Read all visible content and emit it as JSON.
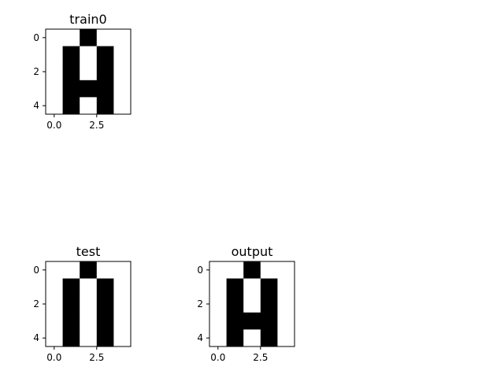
{
  "chart_data": [
    {
      "type": "heatmap",
      "title": "train0",
      "grid": [
        [
          0,
          0,
          1,
          0,
          0
        ],
        [
          0,
          1,
          0,
          1,
          0
        ],
        [
          0,
          1,
          0,
          1,
          0
        ],
        [
          0,
          1,
          1,
          1,
          0
        ],
        [
          0,
          1,
          0,
          1,
          0
        ]
      ],
      "xticks": [
        "0.0",
        "2.5"
      ],
      "xtick_values": [
        0.0,
        2.5
      ],
      "yticks": [
        "0",
        "2",
        "4"
      ],
      "ytick_values": [
        0,
        2,
        4
      ],
      "xlim": [
        -0.5,
        4.5
      ],
      "ylim": [
        4.5,
        -0.5
      ],
      "colors": {
        "1": "#000000",
        "0": "#ffffff"
      }
    },
    {
      "type": "heatmap",
      "title": "test",
      "grid": [
        [
          0,
          0,
          1,
          0,
          0
        ],
        [
          0,
          1,
          0,
          1,
          0
        ],
        [
          0,
          1,
          0,
          1,
          0
        ],
        [
          0,
          1,
          0,
          1,
          0
        ],
        [
          0,
          1,
          0,
          1,
          0
        ]
      ],
      "xticks": [
        "0.0",
        "2.5"
      ],
      "xtick_values": [
        0.0,
        2.5
      ],
      "yticks": [
        "0",
        "2",
        "4"
      ],
      "ytick_values": [
        0,
        2,
        4
      ],
      "xlim": [
        -0.5,
        4.5
      ],
      "ylim": [
        4.5,
        -0.5
      ],
      "colors": {
        "1": "#000000",
        "0": "#ffffff"
      }
    },
    {
      "type": "heatmap",
      "title": "output",
      "grid": [
        [
          0,
          0,
          1,
          0,
          0
        ],
        [
          0,
          1,
          0,
          1,
          0
        ],
        [
          0,
          1,
          0,
          1,
          0
        ],
        [
          0,
          1,
          1,
          1,
          0
        ],
        [
          0,
          1,
          0,
          1,
          0
        ]
      ],
      "xticks": [
        "0.0",
        "2.5"
      ],
      "xtick_values": [
        0.0,
        2.5
      ],
      "yticks": [
        "0",
        "2",
        "4"
      ],
      "ytick_values": [
        0,
        2,
        4
      ],
      "xlim": [
        -0.5,
        4.5
      ],
      "ylim": [
        4.5,
        -0.5
      ],
      "colors": {
        "1": "#000000",
        "0": "#ffffff"
      }
    }
  ]
}
